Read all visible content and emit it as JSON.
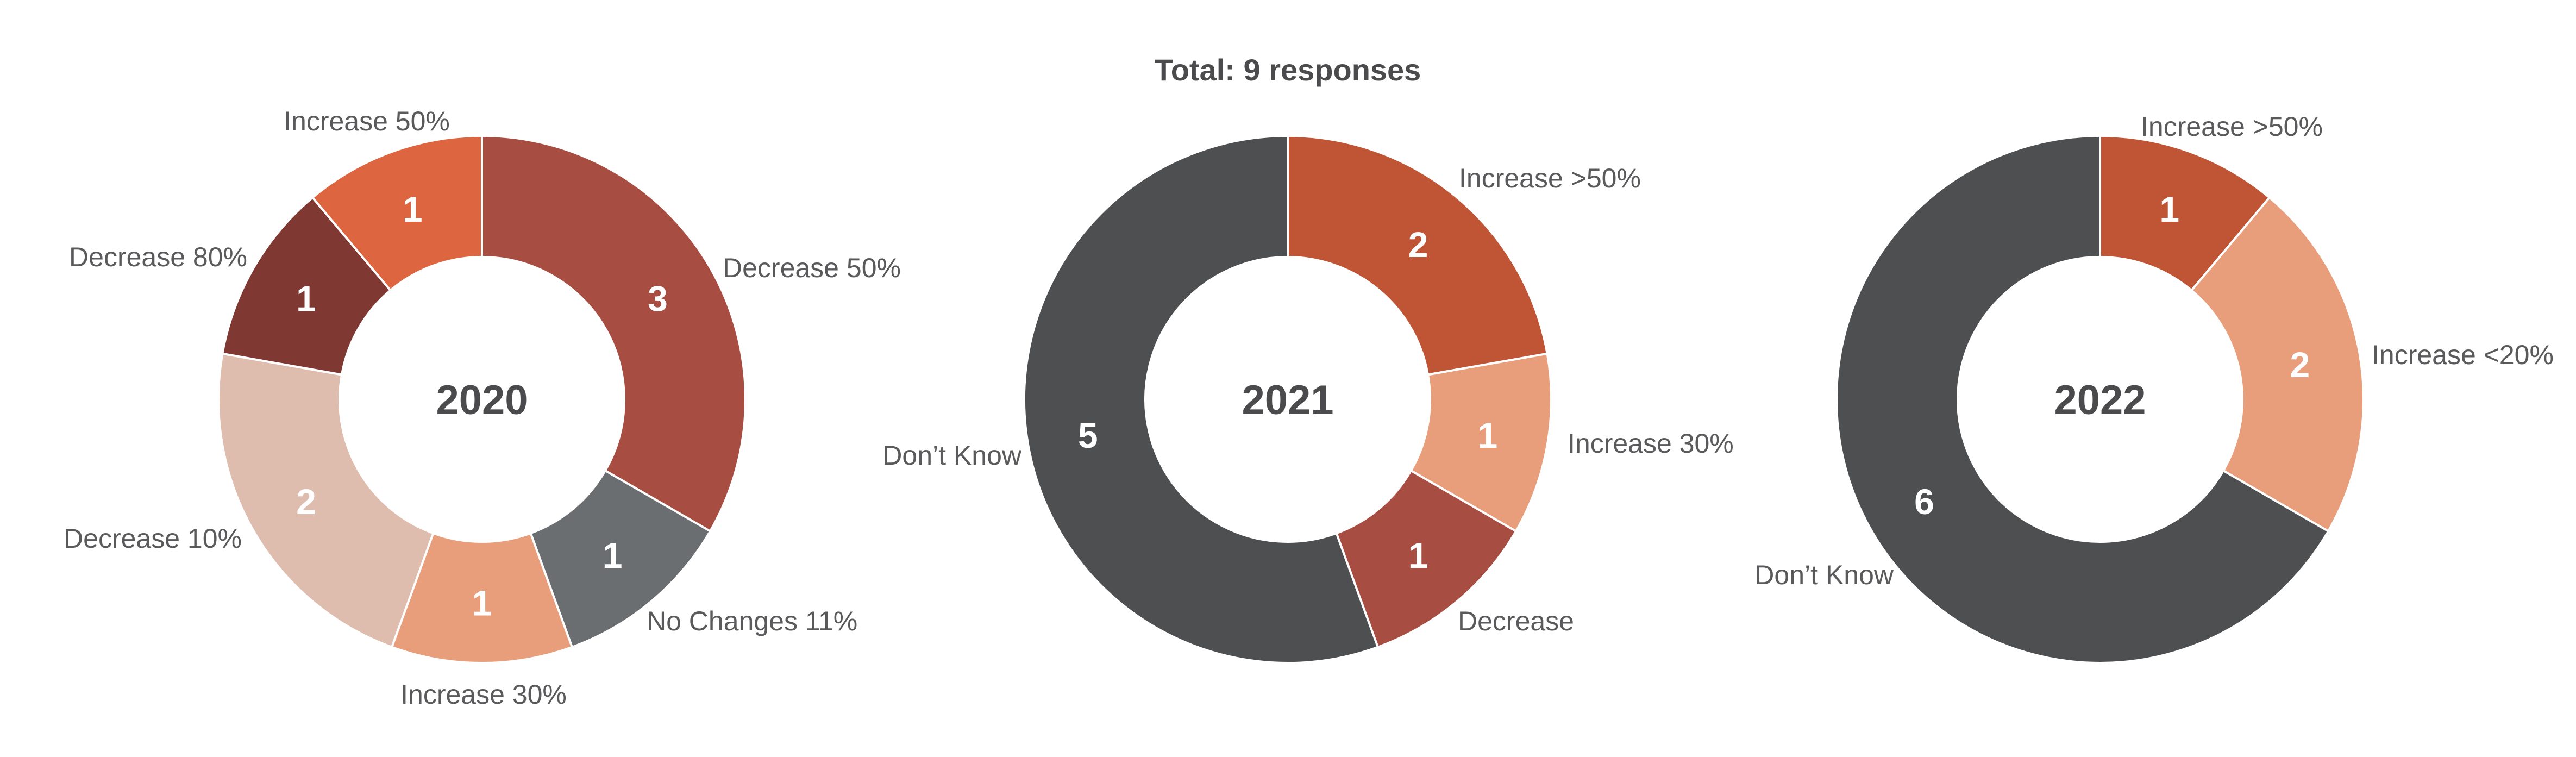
{
  "title": "Total: 9 responses",
  "chart_data": [
    {
      "type": "pie",
      "center_label": "2020",
      "slices": [
        {
          "label": "Decrease 50%",
          "value": 3,
          "color": "#a84d42"
        },
        {
          "label": "No Changes 11%",
          "value": 1,
          "color": "#6b6e70"
        },
        {
          "label": "Increase 30%",
          "value": 1,
          "color": "#e89d7b"
        },
        {
          "label": "Decrease 10%",
          "value": 2,
          "color": "#dfbdae"
        },
        {
          "label": "Decrease 80%",
          "value": 1,
          "color": "#7f3832"
        },
        {
          "label": "Increase 50%",
          "value": 1,
          "color": "#dd6640"
        }
      ]
    },
    {
      "type": "pie",
      "center_label": "2021",
      "slices": [
        {
          "label": "Increase >50%",
          "value": 2,
          "color": "#bf5535"
        },
        {
          "label": "Increase 30%",
          "value": 1,
          "color": "#e89d7b"
        },
        {
          "label": "Decrease",
          "value": 1,
          "color": "#a84d42"
        },
        {
          "label": "Don’t Know",
          "value": 5,
          "color": "#4e4f51"
        }
      ]
    },
    {
      "type": "pie",
      "center_label": "2022",
      "slices": [
        {
          "label": "Increase >50%",
          "value": 1,
          "color": "#bf5535"
        },
        {
          "label": "Increase <20%",
          "value": 2,
          "color": "#e89d7b"
        },
        {
          "label": "Don’t Know",
          "value": 6,
          "color": "#4e4f51"
        }
      ]
    }
  ]
}
